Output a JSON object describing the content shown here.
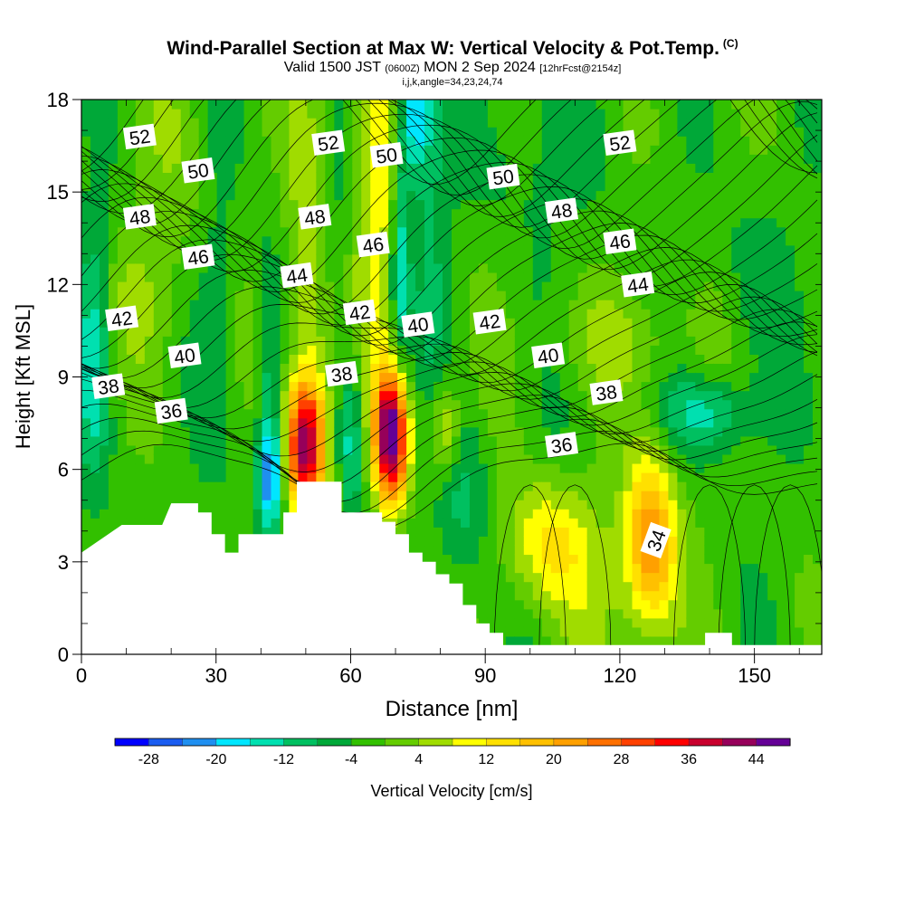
{
  "header": {
    "title": "Wind-Parallel Section at Max W: Vertical Velocity & Pot.Temp.",
    "copyright": "(C)",
    "valid_prefix": "Valid 1500 JST",
    "valid_utc": "(0600Z)",
    "valid_date": "MON 2 Sep 2024",
    "forecast_info": "[12hrFcst@2154z]",
    "grid_info": "i,j,k,angle=34,23,24,74"
  },
  "chart_data": {
    "type": "heatmap",
    "xlabel": "Distance [nm]",
    "ylabel": "Height [Kft MSL]",
    "xlim": [
      0,
      165
    ],
    "ylim": [
      0,
      18
    ],
    "xticks": [
      0,
      30,
      60,
      90,
      120,
      150
    ],
    "yticks": [
      0,
      3,
      6,
      9,
      12,
      15,
      18
    ],
    "colorbar": {
      "label": "Vertical Velocity [cm/s]",
      "tick_labels": [
        "-28",
        "-20",
        "-12",
        "-4",
        "4",
        "12",
        "20",
        "28",
        "36",
        "44"
      ],
      "bin_edges": [
        -32,
        -28,
        -24,
        -20,
        -16,
        -12,
        -8,
        -4,
        0,
        4,
        8,
        12,
        16,
        20,
        24,
        28,
        32,
        36,
        40,
        44,
        48
      ],
      "colors": [
        "#0000ff",
        "#1a5cf0",
        "#1f8ff0",
        "#00e6ff",
        "#00e0b0",
        "#00c060",
        "#00a838",
        "#32c000",
        "#64cc00",
        "#a0dc00",
        "#ffff00",
        "#ffe000",
        "#ffc000",
        "#ffa000",
        "#ff7000",
        "#ff4000",
        "#ff0000",
        "#c8002d",
        "#96005a",
        "#640096"
      ]
    },
    "contours": {
      "quantity": "Potential Temperature (C)",
      "labels": [
        {
          "value": 52,
          "x": 13,
          "y": 16.8
        },
        {
          "value": 52,
          "x": 55,
          "y": 16.6
        },
        {
          "value": 52,
          "x": 120,
          "y": 16.6
        },
        {
          "value": 50,
          "x": 26,
          "y": 15.7
        },
        {
          "value": 50,
          "x": 68,
          "y": 16.2
        },
        {
          "value": 50,
          "x": 94,
          "y": 15.5
        },
        {
          "value": 48,
          "x": 13,
          "y": 14.2
        },
        {
          "value": 48,
          "x": 52,
          "y": 14.2
        },
        {
          "value": 48,
          "x": 107,
          "y": 14.4
        },
        {
          "value": 46,
          "x": 26,
          "y": 12.9
        },
        {
          "value": 46,
          "x": 65,
          "y": 13.3
        },
        {
          "value": 46,
          "x": 120,
          "y": 13.4
        },
        {
          "value": 44,
          "x": 48,
          "y": 12.3
        },
        {
          "value": 44,
          "x": 124,
          "y": 12.0
        },
        {
          "value": 42,
          "x": 9,
          "y": 10.9
        },
        {
          "value": 42,
          "x": 62,
          "y": 11.1
        },
        {
          "value": 42,
          "x": 91,
          "y": 10.8
        },
        {
          "value": 40,
          "x": 23,
          "y": 9.7
        },
        {
          "value": 40,
          "x": 75,
          "y": 10.7
        },
        {
          "value": 40,
          "x": 104,
          "y": 9.7
        },
        {
          "value": 38,
          "x": 6,
          "y": 8.7
        },
        {
          "value": 38,
          "x": 58,
          "y": 9.1
        },
        {
          "value": 38,
          "x": 117,
          "y": 8.5
        },
        {
          "value": 36,
          "x": 20,
          "y": 7.9
        },
        {
          "value": 36,
          "x": 107,
          "y": 6.8
        },
        {
          "value": 34,
          "x": 128,
          "y": 3.7
        }
      ]
    }
  }
}
